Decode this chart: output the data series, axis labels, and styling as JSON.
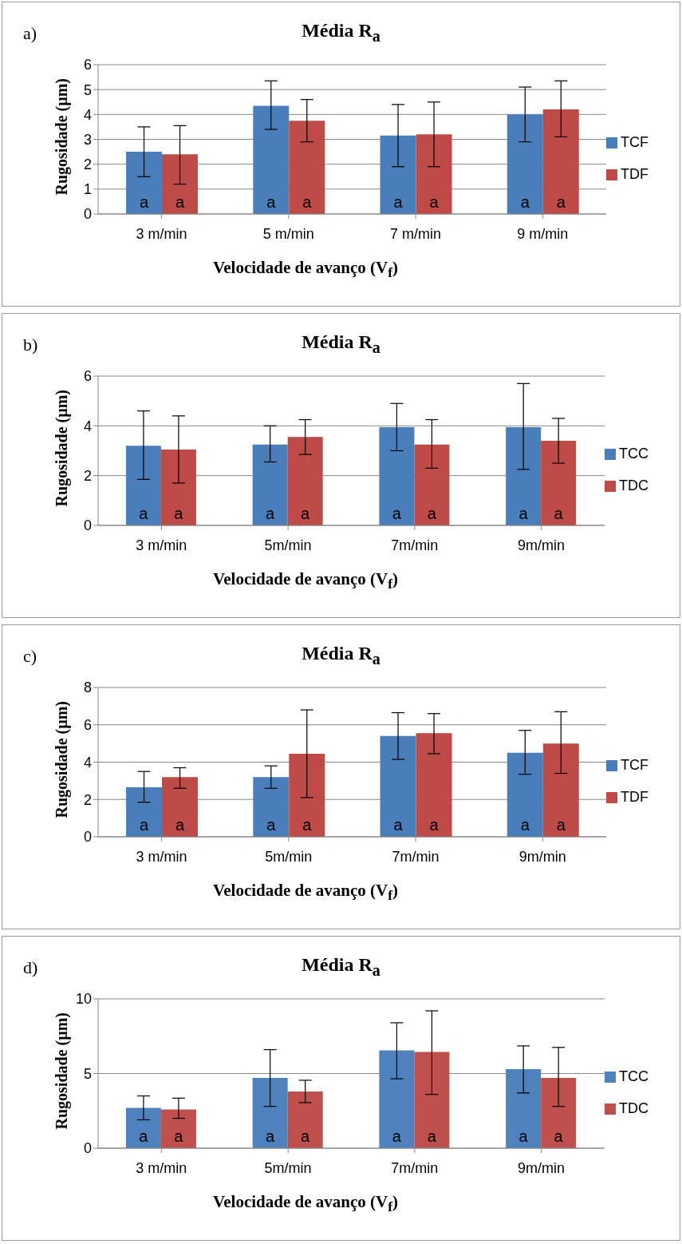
{
  "chart_data": [
    {
      "type": "bar",
      "title": "Média R$_{a}$",
      "xlabel": "Velocidade de avanço (V$_{f}$)",
      "ylabel": "Rugosidade (µm)",
      "annotations": [
        "a)"
      ],
      "categories": [
        "3 m/min",
        "5 m/min",
        "7 m/min",
        "9 m/min"
      ],
      "ylim": [
        0,
        6
      ],
      "yticks": [
        0,
        1,
        2,
        3,
        4,
        5,
        6
      ],
      "grid": "y",
      "legend": "right",
      "series": [
        {
          "name": "TCF",
          "color": "#4a7ebb",
          "values": [
            2.5,
            4.35,
            3.15,
            4.0
          ],
          "errors": [
            [
              1.5,
              3.5
            ],
            [
              3.4,
              5.35
            ],
            [
              1.9,
              4.4
            ],
            [
              2.9,
              5.1
            ]
          ],
          "value_labels": [
            "a",
            "a",
            "a",
            "a"
          ]
        },
        {
          "name": "TDF",
          "color": "#be4b48",
          "values": [
            2.4,
            3.75,
            3.2,
            4.2
          ],
          "errors": [
            [
              1.2,
              3.55
            ],
            [
              2.9,
              4.6
            ],
            [
              1.9,
              4.5
            ],
            [
              3.1,
              5.35
            ]
          ],
          "value_labels": [
            "a",
            "a",
            "a",
            "a"
          ]
        }
      ]
    },
    {
      "type": "bar",
      "title": "Média R$_{a}$",
      "xlabel": "Velocidade de avanço (V$_{f}$)",
      "ylabel": "Rugosidade (µm)",
      "annotations": [
        "b)"
      ],
      "categories": [
        "3 m/min",
        "5m/min",
        "7m/min",
        "9m/min"
      ],
      "ylim": [
        0,
        6
      ],
      "yticks": [
        0,
        2,
        4,
        6
      ],
      "grid": "y",
      "legend": "right",
      "series": [
        {
          "name": "TCC",
          "color": "#4a7ebb",
          "values": [
            3.2,
            3.25,
            3.95,
            3.95
          ],
          "errors": [
            [
              1.85,
              4.6
            ],
            [
              2.55,
              4.0
            ],
            [
              3.0,
              4.9
            ],
            [
              2.25,
              5.7
            ]
          ],
          "value_labels": [
            "a",
            "a",
            "a",
            "a"
          ]
        },
        {
          "name": "TDC",
          "color": "#be4b48",
          "values": [
            3.05,
            3.55,
            3.25,
            3.4
          ],
          "errors": [
            [
              1.7,
              4.4
            ],
            [
              2.85,
              4.25
            ],
            [
              2.3,
              4.25
            ],
            [
              2.5,
              4.3
            ]
          ],
          "value_labels": [
            "a",
            "a",
            "a",
            "a"
          ]
        }
      ]
    },
    {
      "type": "bar",
      "title": "Média R$_{a}$",
      "xlabel": "Velocidade de avanço (V$_{f}$)",
      "ylabel": "Rugosidade (µm)",
      "annotations": [
        "c)"
      ],
      "categories": [
        "3 m/min",
        "5m/min",
        "7m/min",
        "9m/min"
      ],
      "ylim": [
        0,
        8
      ],
      "yticks": [
        0,
        2,
        4,
        6,
        8
      ],
      "grid": "y",
      "legend": "right",
      "series": [
        {
          "name": "TCF",
          "color": "#4a7ebb",
          "values": [
            2.65,
            3.2,
            5.4,
            4.5
          ],
          "errors": [
            [
              1.85,
              3.5
            ],
            [
              2.6,
              3.8
            ],
            [
              4.15,
              6.65
            ],
            [
              3.35,
              5.7
            ]
          ],
          "value_labels": [
            "a",
            "a",
            "a",
            "a"
          ]
        },
        {
          "name": "TDF",
          "color": "#be4b48",
          "values": [
            3.2,
            4.45,
            5.55,
            5.0
          ],
          "errors": [
            [
              2.6,
              3.7
            ],
            [
              2.1,
              6.8
            ],
            [
              4.45,
              6.6
            ],
            [
              3.4,
              6.7
            ]
          ],
          "value_labels": [
            "a",
            "a",
            "a",
            "a"
          ]
        }
      ]
    },
    {
      "type": "bar",
      "title": "Média R$_{a}$",
      "xlabel": "Velocidade de avanço (V$_{f}$)",
      "ylabel": "Rugosidade (µm)",
      "annotations": [
        "d)"
      ],
      "categories": [
        "3 m/min",
        "5m/min",
        "7m/min",
        "9m/min"
      ],
      "ylim": [
        0,
        10
      ],
      "yticks": [
        0,
        5,
        10
      ],
      "grid": "y",
      "legend": "right",
      "series": [
        {
          "name": "TCC",
          "color": "#4f81bd",
          "values": [
            2.7,
            4.7,
            6.55,
            5.3
          ],
          "errors": [
            [
              1.9,
              3.5
            ],
            [
              2.8,
              6.6
            ],
            [
              4.65,
              8.4
            ],
            [
              3.7,
              6.85
            ]
          ],
          "value_labels": [
            "a",
            "a",
            "a",
            "a"
          ]
        },
        {
          "name": "TDC",
          "color": "#c0504d",
          "values": [
            2.6,
            3.8,
            6.45,
            4.7
          ],
          "errors": [
            [
              2.0,
              3.35
            ],
            [
              3.05,
              4.55
            ],
            [
              3.6,
              9.2
            ],
            [
              2.8,
              6.75
            ]
          ],
          "value_labels": [
            "a",
            "a",
            "a",
            "a"
          ]
        }
      ]
    }
  ]
}
